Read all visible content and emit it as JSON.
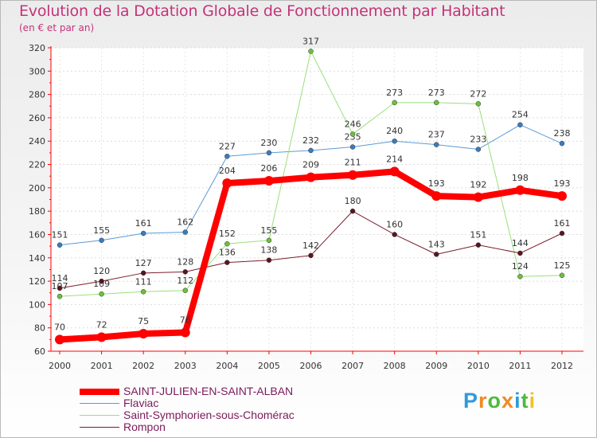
{
  "chart_data": {
    "type": "line",
    "title": "Evolution de la Dotation Globale de Fonctionnement par Habitant",
    "subtitle": "(en € et par an)",
    "x": [
      "2000",
      "2001",
      "2002",
      "2003",
      "2004",
      "2005",
      "2006",
      "2007",
      "2008",
      "2009",
      "2010",
      "2011",
      "2012"
    ],
    "ylim": [
      60,
      320
    ],
    "yticks": [
      60,
      80,
      100,
      120,
      140,
      160,
      180,
      200,
      220,
      240,
      260,
      280,
      300,
      320
    ],
    "series": [
      {
        "name": "Flaviac",
        "color": "#5b9bd5",
        "marker": "#3a7bbf",
        "width": 1,
        "values": [
          151,
          155,
          161,
          162,
          227,
          230,
          232,
          235,
          240,
          237,
          233,
          254,
          238
        ]
      },
      {
        "name": "Saint-Symphorien-sous-Chomérac",
        "color": "#99e07a",
        "marker": "#6cc13a",
        "width": 1,
        "values": [
          107,
          109,
          111,
          112,
          152,
          155,
          317,
          246,
          273,
          273,
          272,
          124,
          125
        ]
      },
      {
        "name": "Rompon",
        "color": "#7a1f2b",
        "marker": "#5a1520",
        "width": 1,
        "values": [
          114,
          120,
          127,
          128,
          136,
          138,
          142,
          180,
          160,
          143,
          151,
          144,
          161
        ]
      },
      {
        "name": "SAINT-JULIEN-EN-SAINT-ALBAN",
        "color": "#ff0000",
        "marker": "#ff0000",
        "width": 8,
        "values": [
          70,
          72,
          75,
          76,
          204,
          206,
          209,
          211,
          214,
          193,
          192,
          198,
          193
        ]
      }
    ]
  },
  "legend": [
    {
      "name": "SAINT-JULIEN-EN-SAINT-ALBAN",
      "color": "#ff0000",
      "thick": true
    },
    {
      "name": "Flaviac",
      "color": "#5b9bd5",
      "thick": false
    },
    {
      "name": "Saint-Symphorien-sous-Chomérac",
      "color": "#99e07a",
      "thick": false
    },
    {
      "name": "Rompon",
      "color": "#7a1f2b",
      "thick": false
    }
  ],
  "logo": {
    "letters": [
      "P",
      "r",
      "o",
      "x",
      "i",
      "t",
      "i"
    ],
    "colors": [
      "#2f9bd9",
      "#f08a24",
      "#4dbb3c",
      "#f08a24",
      "#2f9bd9",
      "#4dbb3c",
      "#f0c324"
    ]
  }
}
